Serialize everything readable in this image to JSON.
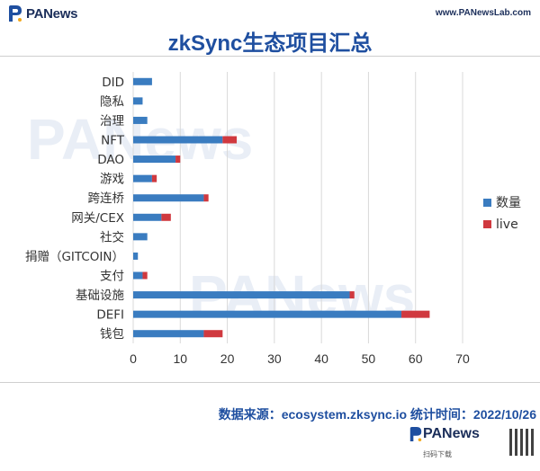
{
  "header": {
    "brand": "PANews",
    "site": "www.PANewsLab.com"
  },
  "title": "zkSync生态项目汇总",
  "source": "数据来源：ecosystem.zksync.io 统计时间：2022/10/26",
  "footer": {
    "brand": "PANews",
    "sub": "扫码下载"
  },
  "colors": {
    "count": "#3a7cc0",
    "live": "#d0393f",
    "title": "#1f4fa0"
  },
  "chart_data": {
    "type": "bar",
    "orientation": "horizontal",
    "stacked": true,
    "categories": [
      "DID",
      "隐私",
      "治理",
      "NFT",
      "DAO",
      "游戏",
      "跨连桥",
      "网关/CEX",
      "社交",
      "捐赠（GITCOIN）",
      "支付",
      "基础设施",
      "DEFI",
      "钱包"
    ],
    "series": [
      {
        "name": "数量",
        "color": "#3a7cc0",
        "values": [
          4,
          2,
          3,
          19,
          9,
          4,
          15,
          6,
          3,
          1,
          2,
          46,
          57,
          15
        ]
      },
      {
        "name": "live",
        "color": "#d0393f",
        "values": [
          0,
          0,
          0,
          3,
          1,
          1,
          1,
          2,
          0,
          0,
          1,
          1,
          6,
          4
        ]
      }
    ],
    "xlim": [
      0,
      70
    ],
    "xticks": [
      0,
      10,
      20,
      30,
      40,
      50,
      60,
      70
    ],
    "grid": true,
    "legend_position": "right"
  }
}
